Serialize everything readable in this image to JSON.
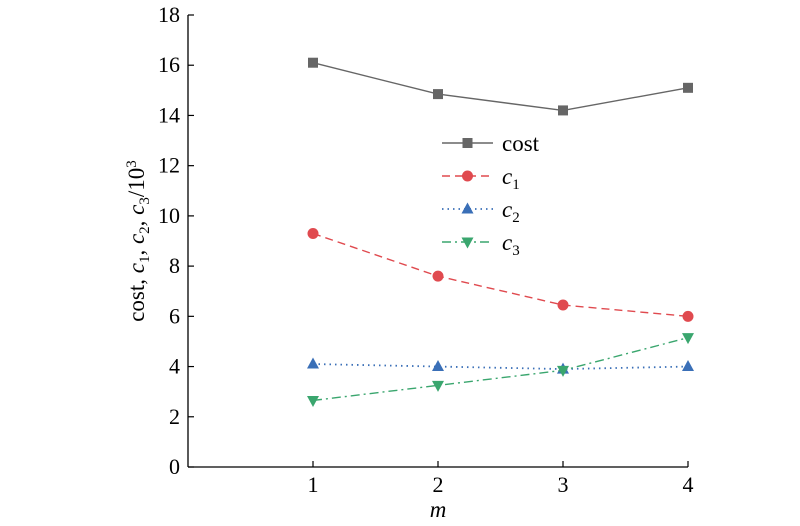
{
  "chart_data": {
    "type": "line",
    "x": [
      1,
      2,
      3,
      4
    ],
    "xlim": [
      0,
      4
    ],
    "ylim": [
      0,
      18
    ],
    "xticks": [
      1,
      2,
      3,
      4
    ],
    "yticks": [
      0,
      2,
      4,
      6,
      8,
      10,
      12,
      14,
      16,
      18
    ],
    "xlabel": "m",
    "ylabel": "cost, c1, c2, c3/10^3",
    "ylabel_parts": {
      "cost": "cost, ",
      "c": "c",
      "s1": "1",
      "s2": "2",
      "s3": "3",
      "sep": ", ",
      "per": "/10",
      "exp": "3"
    },
    "grid": false,
    "legend_position": "upper-right",
    "series": [
      {
        "key": "cost",
        "name": "cost",
        "name_main": "cost",
        "name_sub": "",
        "color": "#666666",
        "dash": "",
        "marker": "square",
        "values": [
          16.1,
          14.85,
          14.2,
          15.1
        ]
      },
      {
        "key": "c1",
        "name": "c1",
        "name_main": "c",
        "name_sub": "1",
        "color": "#e04a4f",
        "dash": "8 5",
        "marker": "circle",
        "values": [
          9.3,
          7.6,
          6.45,
          6.0
        ]
      },
      {
        "key": "c2",
        "name": "c2",
        "name_main": "c",
        "name_sub": "2",
        "color": "#3a6fb7",
        "dash": "1.5 4",
        "marker": "triangle-up",
        "values": [
          4.1,
          4.0,
          3.9,
          4.0
        ]
      },
      {
        "key": "c3",
        "name": "c3",
        "name_main": "c",
        "name_sub": "3",
        "color": "#3aa66e",
        "dash": "9 4 2 4",
        "marker": "triangle-down",
        "values": [
          2.65,
          3.25,
          3.85,
          5.15
        ]
      }
    ]
  }
}
